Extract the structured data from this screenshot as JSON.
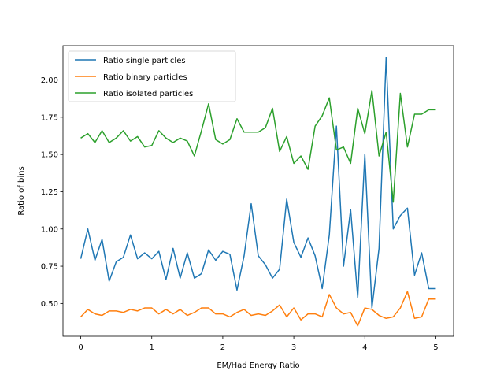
{
  "chart_data": {
    "type": "line",
    "title": "",
    "xlabel": "EM/Had Energy Ratio",
    "ylabel": "Ratio of bins",
    "xlim": [
      -0.25,
      5.25
    ],
    "ylim": [
      0.28,
      2.23
    ],
    "xticks": [
      0,
      1,
      2,
      3,
      4,
      5
    ],
    "xtick_labels": [
      "0",
      "1",
      "2",
      "3",
      "4",
      "5"
    ],
    "yticks": [
      0.5,
      0.75,
      1.0,
      1.25,
      1.5,
      1.75,
      2.0
    ],
    "ytick_labels": [
      "0.50",
      "0.75",
      "1.00",
      "1.25",
      "1.50",
      "1.75",
      "2.00"
    ],
    "grid": false,
    "legend_position": "top-left",
    "x": [
      0,
      0.1,
      0.2,
      0.3,
      0.4,
      0.5,
      0.6,
      0.7,
      0.8,
      0.9,
      1.0,
      1.1,
      1.2,
      1.3,
      1.4,
      1.5,
      1.6,
      1.7,
      1.8,
      1.9,
      2.0,
      2.1,
      2.2,
      2.3,
      2.4,
      2.5,
      2.6,
      2.7,
      2.8,
      2.9,
      3.0,
      3.1,
      3.2,
      3.3,
      3.4,
      3.5,
      3.6,
      3.7,
      3.8,
      3.9,
      4.0,
      4.1,
      4.2,
      4.3,
      4.4,
      4.5,
      4.6,
      4.7,
      4.8,
      4.9,
      5.0
    ],
    "series": [
      {
        "name": "Ratio single particles",
        "color": "#1f77b4",
        "values": [
          0.8,
          1.0,
          0.79,
          0.93,
          0.65,
          0.78,
          0.81,
          0.96,
          0.8,
          0.84,
          0.8,
          0.85,
          0.66,
          0.87,
          0.67,
          0.84,
          0.67,
          0.7,
          0.86,
          0.79,
          0.85,
          0.83,
          0.59,
          0.82,
          1.17,
          0.82,
          0.76,
          0.67,
          0.73,
          1.2,
          0.91,
          0.81,
          0.94,
          0.82,
          0.6,
          0.96,
          1.69,
          0.75,
          1.13,
          0.54,
          1.5,
          0.47,
          0.87,
          2.15,
          1.0,
          1.09,
          1.14,
          0.69,
          0.84,
          0.6,
          0.6
        ]
      },
      {
        "name": "Ratio binary particles",
        "color": "#ff7f0e",
        "values": [
          0.41,
          0.46,
          0.43,
          0.42,
          0.45,
          0.45,
          0.44,
          0.46,
          0.45,
          0.47,
          0.47,
          0.43,
          0.46,
          0.43,
          0.46,
          0.42,
          0.44,
          0.47,
          0.47,
          0.43,
          0.43,
          0.41,
          0.44,
          0.46,
          0.42,
          0.43,
          0.42,
          0.45,
          0.49,
          0.41,
          0.47,
          0.39,
          0.43,
          0.43,
          0.41,
          0.56,
          0.47,
          0.43,
          0.44,
          0.35,
          0.47,
          0.46,
          0.42,
          0.4,
          0.41,
          0.47,
          0.58,
          0.4,
          0.41,
          0.53,
          0.53
        ]
      },
      {
        "name": "Ratio isolated particles",
        "color": "#2ca02c",
        "values": [
          1.61,
          1.64,
          1.58,
          1.66,
          1.58,
          1.61,
          1.66,
          1.59,
          1.62,
          1.55,
          1.56,
          1.66,
          1.61,
          1.58,
          1.61,
          1.59,
          1.49,
          1.66,
          1.84,
          1.6,
          1.57,
          1.6,
          1.74,
          1.65,
          1.65,
          1.65,
          1.68,
          1.81,
          1.52,
          1.62,
          1.44,
          1.49,
          1.4,
          1.69,
          1.76,
          1.88,
          1.53,
          1.55,
          1.44,
          1.81,
          1.64,
          1.93,
          1.49,
          1.65,
          1.18,
          1.91,
          1.55,
          1.77,
          1.77,
          1.8,
          1.8
        ]
      }
    ]
  }
}
